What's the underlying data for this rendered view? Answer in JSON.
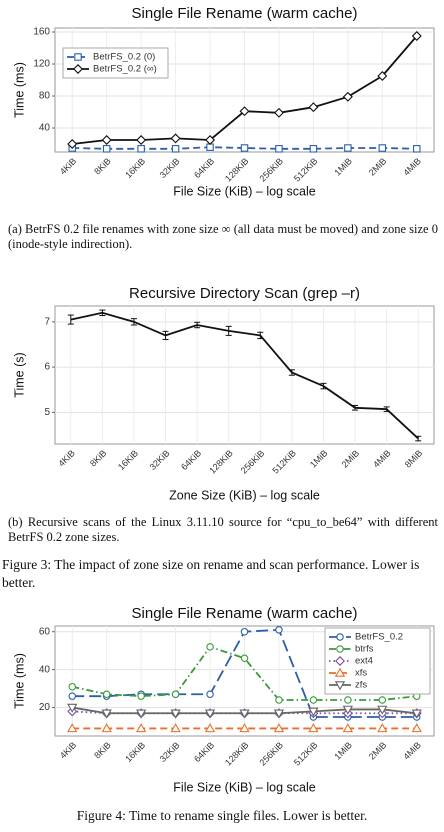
{
  "chart_data": [
    {
      "type": "line",
      "title": "Single File Rename (warm cache)",
      "ylabel": "Time (ms)",
      "xlabel": "File Size (KiB) – log scale",
      "categories": [
        "4KiB",
        "8KiB",
        "16KiB",
        "32KiB",
        "64KiB",
        "128KiB",
        "256KiB",
        "512KiB",
        "1MiB",
        "2MiB",
        "4MiB"
      ],
      "ylim": [
        10,
        165
      ],
      "yticks": [
        40,
        80,
        120,
        160
      ],
      "grid": true,
      "legend": "upper left",
      "series": [
        {
          "name": "BetrFS_0.2 (0)",
          "color": "#2b5faa",
          "dash": "dashed",
          "marker": "square",
          "values": [
            15,
            14,
            14,
            14,
            16,
            15,
            14,
            14,
            15,
            15,
            14
          ]
        },
        {
          "name": "BetrFS_0.2 (∞)",
          "color": "#111111",
          "dash": "solid",
          "marker": "diamond",
          "values": [
            20,
            25,
            25,
            27,
            25,
            61,
            59,
            66,
            79,
            105,
            155
          ]
        }
      ]
    },
    {
      "type": "line",
      "title": "Recursive Directory Scan (grep –r)",
      "ylabel": "Time (s)",
      "xlabel": "Zone Size (KiB) – log scale",
      "categories": [
        "4KiB",
        "8KiB",
        "16KiB",
        "32KiB",
        "64KiB",
        "128KiB",
        "256KiB",
        "512KiB",
        "1MiB",
        "2MiB",
        "4MiB",
        "8MiB"
      ],
      "ylim": [
        4.3,
        7.35
      ],
      "yticks": [
        5,
        6,
        7
      ],
      "grid": true,
      "series": [
        {
          "name": "BetrFS_0.2",
          "color": "#111111",
          "dash": "solid",
          "marker": "none",
          "values": [
            7.05,
            7.2,
            7.0,
            6.7,
            6.93,
            6.8,
            6.7,
            5.88,
            5.58,
            5.1,
            5.07,
            4.42
          ],
          "errors": [
            0.1,
            0.06,
            0.07,
            0.09,
            0.06,
            0.1,
            0.07,
            0.06,
            0.06,
            0.05,
            0.05,
            0.05
          ]
        }
      ]
    },
    {
      "type": "line",
      "title": "Single File Rename (warm cache)",
      "ylabel": "Time (ms)",
      "xlabel": "File Size (KiB) – log scale",
      "categories": [
        "4KiB",
        "8KiB",
        "16KiB",
        "32KiB",
        "64KiB",
        "128KiB",
        "256KiB",
        "512KiB",
        "1MiB",
        "2MiB",
        "4MiB"
      ],
      "ylim": [
        5,
        63
      ],
      "yticks": [
        20,
        40,
        60
      ],
      "grid": true,
      "legend": "upper right",
      "series": [
        {
          "name": "BetrFS_0.2",
          "color": "#2a5ea8",
          "dash": "longdash",
          "marker": "circle",
          "values": [
            26,
            26,
            27,
            27,
            27,
            60,
            61,
            15,
            15,
            15,
            15
          ]
        },
        {
          "name": "btrfs",
          "color": "#3a9a3a",
          "dash": "dashdot",
          "marker": "circle",
          "values": [
            31,
            27,
            26,
            27,
            52,
            46,
            24,
            24,
            24,
            24,
            26
          ]
        },
        {
          "name": "ext4",
          "color": "#7b4fa0",
          "dash": "dotted",
          "marker": "diamond",
          "values": [
            18,
            17,
            17,
            17,
            17,
            17,
            17,
            17,
            17,
            17,
            17
          ]
        },
        {
          "name": "xfs",
          "color": "#e8702a",
          "dash": "dashed",
          "marker": "triangle",
          "values": [
            9,
            9,
            9,
            9,
            9,
            9,
            9,
            9,
            9,
            9,
            9
          ]
        },
        {
          "name": "zfs",
          "color": "#666666",
          "dash": "solid",
          "marker": "triangle-down",
          "values": [
            20,
            17,
            17,
            17,
            17,
            17,
            17,
            18,
            19,
            19,
            17
          ]
        }
      ]
    }
  ],
  "captions": [
    "(a) BetrFS 0.2 file renames with zone size ∞ (all data must be moved) and zone size 0 (inode-style indirection).",
    "(b) Recursive scans of the Linux 3.11.10 source for “cpu_to_be64” with different BetrFS 0.2 zone sizes.",
    "Figure 3: The impact of zone size on rename and scan performance. Lower is better.",
    "Figure 4: Time to rename single files. Lower is better."
  ]
}
